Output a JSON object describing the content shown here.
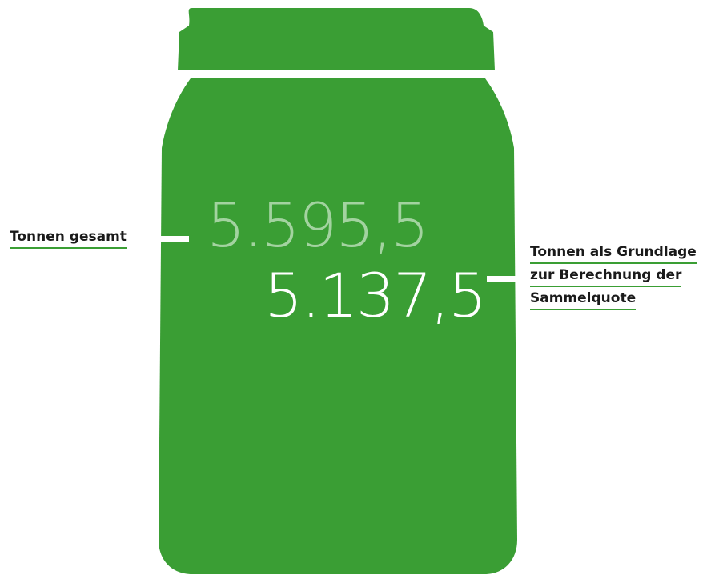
{
  "colors": {
    "jar": "#3a9e34",
    "number_total": "#a3d3a0",
    "number_basis": "#ffffff",
    "underline": "#3a9e34",
    "connector": "#ffffff"
  },
  "figure": {
    "total_value": "5.595,5",
    "basis_value": "5.137,5",
    "total_label": "Tonnen gesamt",
    "basis_label_lines": [
      "Tonnen als Grundlage",
      "zur Berechnung der",
      "Sammelquote"
    ]
  }
}
